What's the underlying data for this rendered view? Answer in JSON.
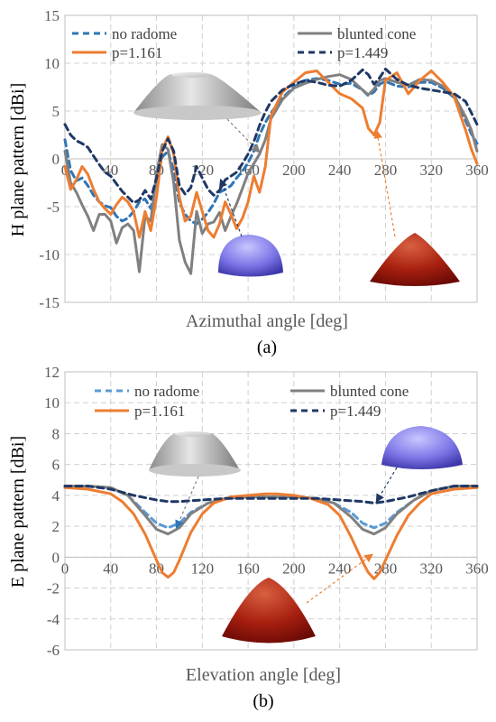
{
  "figure": {
    "panels": [
      {
        "caption": "(a)",
        "xlabel": "Azimuthal angle [deg]",
        "ylabel": "H plane pattern [dBi]"
      },
      {
        "caption": "(b)",
        "xlabel": "Elevation angle [deg]",
        "ylabel": "E plane pattern [dBi]"
      }
    ]
  },
  "chart_data": [
    {
      "type": "line",
      "title": "",
      "caption": "(a)",
      "xlabel": "Azimuthal angle [deg]",
      "ylabel": "H plane pattern [dBi]",
      "xlim": [
        0,
        360
      ],
      "ylim": [
        -15,
        15
      ],
      "xticks": [
        0,
        40,
        80,
        120,
        160,
        200,
        240,
        280,
        320,
        360
      ],
      "yticks": [
        -15,
        -10,
        -5,
        0,
        5,
        10,
        15
      ],
      "grid": true,
      "legend": "top",
      "series": [
        {
          "name": "no radome",
          "color": "#2e75b6",
          "dash": "dashed",
          "x": [
            0,
            5,
            10,
            15,
            20,
            25,
            30,
            35,
            40,
            45,
            50,
            55,
            60,
            65,
            70,
            75,
            80,
            85,
            90,
            95,
            100,
            105,
            110,
            115,
            120,
            125,
            130,
            135,
            140,
            145,
            150,
            155,
            160,
            165,
            170,
            175,
            180,
            190,
            200,
            210,
            220,
            230,
            240,
            250,
            260,
            265,
            270,
            275,
            280,
            290,
            300,
            310,
            320,
            330,
            340,
            350,
            355,
            360
          ],
          "y": [
            2,
            -1.2,
            -2.3,
            -2,
            -2.8,
            -3.8,
            -4.5,
            -4.9,
            -5.1,
            -6,
            -6.5,
            -6.2,
            -5.5,
            -4.5,
            -4.2,
            -5.2,
            -2.2,
            0.2,
            0.8,
            -1.2,
            -4.6,
            -5.8,
            -6.5,
            -6.8,
            -6.3,
            -5.6,
            -4.7,
            -3.5,
            -3.2,
            -2.8,
            -2,
            -1.3,
            -0.4,
            0.8,
            2.5,
            3.8,
            4.8,
            6.4,
            7.5,
            8.2,
            8.4,
            8.2,
            7.8,
            7.9,
            7.2,
            6.6,
            7,
            7.8,
            8.1,
            7.6,
            7.5,
            8,
            8,
            7.4,
            6.4,
            4,
            2.6,
            1.6
          ]
        },
        {
          "name": "blunted cone",
          "color": "#808080",
          "dash": "solid",
          "x": [
            0,
            5,
            10,
            15,
            20,
            25,
            30,
            35,
            40,
            45,
            50,
            55,
            60,
            65,
            70,
            75,
            80,
            85,
            90,
            95,
            100,
            105,
            110,
            115,
            120,
            125,
            130,
            135,
            140,
            145,
            150,
            155,
            160,
            165,
            170,
            175,
            180,
            190,
            200,
            210,
            220,
            230,
            240,
            250,
            260,
            265,
            270,
            275,
            280,
            290,
            300,
            310,
            320,
            330,
            340,
            350,
            355,
            360
          ],
          "y": [
            0.8,
            -2.5,
            -3.5,
            -4.8,
            -6,
            -7.5,
            -5.8,
            -5.8,
            -6.5,
            -8.8,
            -7.2,
            -6.8,
            -7.5,
            -11.8,
            -6,
            -6.5,
            -1.5,
            1.5,
            1,
            -2.5,
            -8.5,
            -10.8,
            -12,
            -5.5,
            -7.8,
            -6.8,
            -6.6,
            -5.6,
            -7.5,
            -6,
            -4.7,
            -3.1,
            -1.5,
            -0.5,
            0.5,
            2,
            4.2,
            6.2,
            7.4,
            7.9,
            8.3,
            8.6,
            8.8,
            8.3,
            7.2,
            6.7,
            7.3,
            8.2,
            8.4,
            8,
            7.7,
            8.3,
            8.2,
            7.6,
            6.6,
            4.4,
            3,
            0.8
          ]
        },
        {
          "name": "p=1.161",
          "color": "#ed7d31",
          "dash": "solid",
          "x": [
            0,
            5,
            10,
            15,
            20,
            25,
            30,
            35,
            40,
            45,
            50,
            55,
            60,
            65,
            70,
            75,
            80,
            85,
            90,
            95,
            100,
            105,
            110,
            115,
            120,
            125,
            130,
            135,
            140,
            145,
            150,
            155,
            160,
            165,
            170,
            175,
            180,
            190,
            200,
            210,
            220,
            230,
            240,
            250,
            260,
            265,
            270,
            275,
            280,
            290,
            300,
            310,
            320,
            330,
            340,
            350,
            355,
            360
          ],
          "y": [
            -0.8,
            -3.2,
            -2.2,
            -0.8,
            -1.6,
            -3.2,
            -4.5,
            -5.2,
            -5.8,
            -4.8,
            -4,
            -4.5,
            -5.5,
            -8.2,
            -5.5,
            -7.5,
            -4,
            1,
            2.3,
            0.5,
            -4,
            -6.5,
            -6,
            -3.5,
            -5.5,
            -7.5,
            -8.2,
            -6.8,
            -4.5,
            -5.8,
            -7.3,
            -6.2,
            -4.5,
            -1.8,
            -3.5,
            -0.8,
            4.5,
            7,
            8,
            9,
            9.2,
            8,
            6.8,
            6.3,
            5.3,
            3.2,
            2.5,
            3.8,
            8.2,
            9,
            6.8,
            8.2,
            9.2,
            8,
            6.5,
            3,
            1,
            -0.5
          ]
        },
        {
          "name": "p=1.449",
          "color": "#1f3864",
          "dash": "dashed",
          "x": [
            0,
            5,
            10,
            15,
            20,
            25,
            30,
            35,
            40,
            45,
            50,
            55,
            60,
            65,
            70,
            75,
            80,
            85,
            90,
            95,
            100,
            105,
            110,
            115,
            120,
            125,
            130,
            135,
            140,
            145,
            150,
            155,
            160,
            165,
            170,
            175,
            180,
            190,
            200,
            210,
            220,
            230,
            240,
            250,
            260,
            265,
            270,
            275,
            280,
            290,
            300,
            310,
            320,
            330,
            340,
            350,
            355,
            360
          ],
          "y": [
            3.6,
            2.5,
            1.9,
            1.6,
            1.2,
            0.3,
            -0.6,
            -1.4,
            -1.8,
            -2.6,
            -3.4,
            -4,
            -4.6,
            -4.3,
            -3.3,
            -4.2,
            -2,
            0.8,
            2.1,
            0.8,
            -2.8,
            -3.7,
            -3,
            -0.8,
            -2,
            -3.2,
            -3.8,
            -3.3,
            -2.2,
            -1.8,
            -1.4,
            -0.5,
            0.5,
            1.8,
            3.5,
            4.9,
            6,
            7.2,
            7.8,
            8.2,
            8,
            7.7,
            7.6,
            8.2,
            9.3,
            8.8,
            7.8,
            8.5,
            9.4,
            8.3,
            7.7,
            7.4,
            7.2,
            7,
            6.8,
            6,
            4.8,
            3.6
          ]
        }
      ]
    },
    {
      "type": "line",
      "title": "",
      "caption": "(b)",
      "xlabel": "Elevation angle [deg]",
      "ylabel": "E plane pattern [dBi]",
      "xlim": [
        0,
        360
      ],
      "ylim": [
        -6,
        12
      ],
      "xticks": [
        0,
        40,
        80,
        120,
        160,
        200,
        240,
        280,
        320,
        360
      ],
      "yticks": [
        -6,
        -4,
        -2,
        0,
        2,
        4,
        6,
        8,
        10,
        12
      ],
      "grid": true,
      "legend": "top",
      "series": [
        {
          "name": "no radome",
          "color": "#5b9bd5",
          "dash": "dashed",
          "x": [
            0,
            20,
            40,
            55,
            70,
            80,
            90,
            100,
            110,
            125,
            140,
            160,
            180,
            200,
            220,
            235,
            250,
            260,
            270,
            280,
            290,
            305,
            320,
            340,
            360
          ],
          "y": [
            4.6,
            4.6,
            4.5,
            4.0,
            2.9,
            2.2,
            1.9,
            2.2,
            2.9,
            3.5,
            3.8,
            3.9,
            3.9,
            3.9,
            3.8,
            3.5,
            2.9,
            2.2,
            1.9,
            2.2,
            2.9,
            3.7,
            4.3,
            4.6,
            4.6
          ]
        },
        {
          "name": "blunted cone",
          "color": "#808080",
          "dash": "solid",
          "x": [
            0,
            20,
            40,
            55,
            70,
            80,
            90,
            100,
            110,
            125,
            140,
            160,
            180,
            200,
            220,
            235,
            250,
            260,
            270,
            280,
            290,
            305,
            320,
            340,
            360
          ],
          "y": [
            4.6,
            4.6,
            4.5,
            4.0,
            2.7,
            1.8,
            1.5,
            1.9,
            2.8,
            3.5,
            3.8,
            3.9,
            3.9,
            3.9,
            3.8,
            3.5,
            2.6,
            1.8,
            1.5,
            1.9,
            2.8,
            3.7,
            4.3,
            4.6,
            4.6
          ]
        },
        {
          "name": "p=1.161",
          "color": "#ed7d31",
          "dash": "solid",
          "x": [
            0,
            20,
            40,
            50,
            60,
            70,
            80,
            85,
            90,
            95,
            100,
            110,
            120,
            130,
            145,
            160,
            175,
            185,
            200,
            215,
            230,
            240,
            250,
            260,
            265,
            270,
            275,
            280,
            290,
            300,
            310,
            320,
            340,
            360
          ],
          "y": [
            4.5,
            4.4,
            4.1,
            3.6,
            2.8,
            1.5,
            -0.2,
            -1.0,
            -1.3,
            -1.0,
            -0.2,
            1.6,
            2.8,
            3.5,
            3.9,
            4.0,
            4.1,
            4.1,
            4.0,
            3.8,
            3.4,
            2.7,
            1.3,
            -0.3,
            -1.0,
            -1.4,
            -1.0,
            -0.2,
            1.4,
            2.7,
            3.5,
            4.1,
            4.4,
            4.5
          ]
        },
        {
          "name": "p=1.449",
          "color": "#1f3864",
          "dash": "dashed",
          "x": [
            0,
            20,
            40,
            60,
            80,
            90,
            100,
            120,
            140,
            160,
            180,
            200,
            220,
            240,
            260,
            270,
            280,
            300,
            320,
            340,
            360
          ],
          "y": [
            4.6,
            4.6,
            4.4,
            4.0,
            3.7,
            3.6,
            3.6,
            3.7,
            3.8,
            3.8,
            3.8,
            3.8,
            3.8,
            3.7,
            3.6,
            3.5,
            3.6,
            3.9,
            4.3,
            4.6,
            4.6
          ]
        }
      ]
    }
  ]
}
